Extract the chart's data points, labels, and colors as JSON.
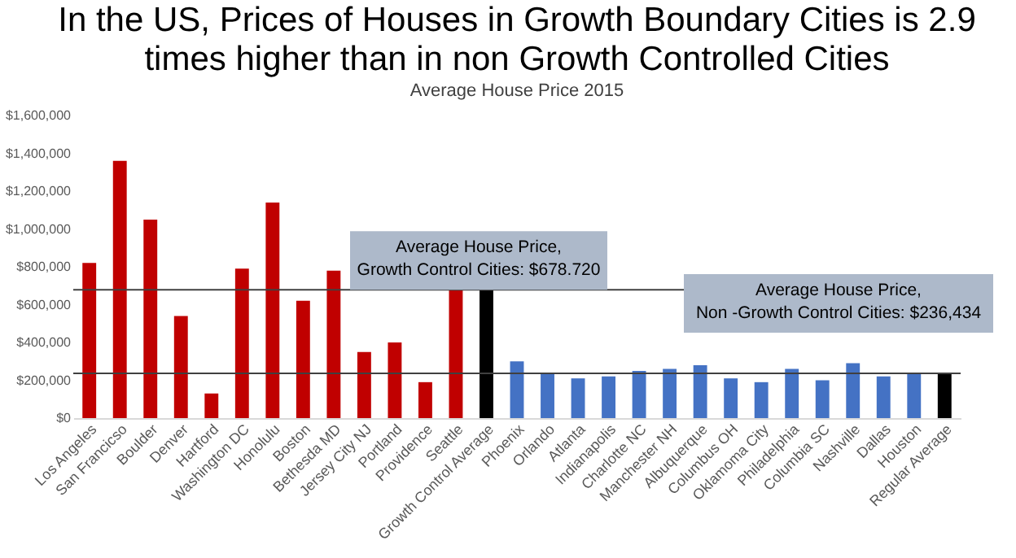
{
  "chart_data": {
    "type": "bar",
    "title": "In the US, Prices of Houses in Growth Boundary Cities is 2.9 times higher than in non Growth Controlled Cities",
    "subtitle": "Average House Price 2015",
    "categories": [
      "Los Angeles",
      "San Francicso",
      "Boulder",
      "Denver",
      "Hartford",
      "Washington DC",
      "Honolulu",
      "Boston",
      "Bethesda MD",
      "Jersey City NJ",
      "Portland",
      "Providence",
      "Seattle",
      "Growth Control Average",
      "Phoenix",
      "Orlando",
      "Atlanta",
      "Indianapolis",
      "Charlotte NC",
      "Manchester NH",
      "Albuquerque",
      "Columbus OH",
      "Oklamoma City",
      "Philadelphia",
      "Columbia SC",
      "Nashville",
      "Dallas",
      "Houston",
      "Regular Average"
    ],
    "values": [
      820000,
      1360000,
      1050000,
      540000,
      130000,
      790000,
      1140000,
      620000,
      780000,
      350000,
      400000,
      190000,
      680000,
      678720,
      300000,
      240000,
      210000,
      220000,
      250000,
      260000,
      280000,
      210000,
      190000,
      260000,
      200000,
      290000,
      220000,
      240000,
      236434
    ],
    "colors": [
      "#c00000",
      "#c00000",
      "#c00000",
      "#c00000",
      "#c00000",
      "#c00000",
      "#c00000",
      "#c00000",
      "#c00000",
      "#c00000",
      "#c00000",
      "#c00000",
      "#c00000",
      "#000000",
      "#4472c4",
      "#4472c4",
      "#4472c4",
      "#4472c4",
      "#4472c4",
      "#4472c4",
      "#4472c4",
      "#4472c4",
      "#4472c4",
      "#4472c4",
      "#4472c4",
      "#4472c4",
      "#4472c4",
      "#4472c4",
      "#000000"
    ],
    "ylim": [
      0,
      1600000
    ],
    "yticks": [
      {
        "value": 0,
        "label": "$0"
      },
      {
        "value": 200000,
        "label": "$200,000"
      },
      {
        "value": 400000,
        "label": "$400,000"
      },
      {
        "value": 600000,
        "label": "$600,000"
      },
      {
        "value": 800000,
        "label": "$800,000"
      },
      {
        "value": 1000000,
        "label": "$1,000,000"
      },
      {
        "value": 1200000,
        "label": "$1,200,000"
      },
      {
        "value": 1400000,
        "label": "$1,400,000"
      },
      {
        "value": 1600000,
        "label": "$1,600,000"
      }
    ],
    "ref_lines": [
      {
        "axis": "y",
        "value": 678720,
        "color": "#404040"
      },
      {
        "axis": "y",
        "value": 236434,
        "color": "#404040"
      }
    ],
    "annotations": [
      "Average House Price,\nGrowth Control Cities: $678.720",
      "Average House Price,\nNon -Growth Control Cities: $236,434"
    ],
    "grid": false
  }
}
